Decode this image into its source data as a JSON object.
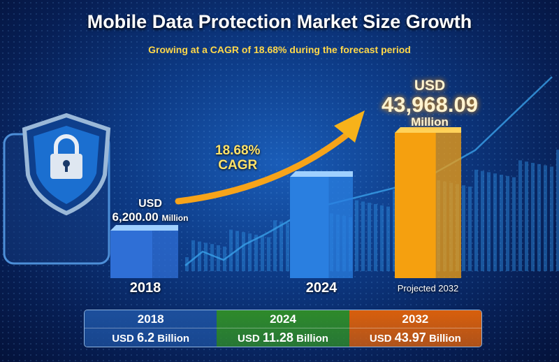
{
  "title": "Mobile Data Protection Market Size Growth",
  "subtitle": "Growing at a CAGR of 18.68% during the forecast period",
  "cagr": {
    "value": "18.68%",
    "label": "CAGR"
  },
  "labels": {
    "y2018": {
      "currency": "USD",
      "value": "6,200.00",
      "unit": "Million"
    },
    "y2032": {
      "currency": "USD",
      "value": "43,968.09",
      "unit": "Million"
    }
  },
  "chart_data": {
    "type": "bar",
    "title": "Mobile Data Protection Market Size Growth",
    "categories": [
      "2018",
      "2024",
      "Projected 2032"
    ],
    "values": [
      6200.0,
      11280,
      43968.09
    ],
    "unit": "USD Million",
    "colors": [
      "#2f6fd6",
      "#2a7fe0",
      "#f5a00f"
    ]
  },
  "table": [
    {
      "year": "2018",
      "prefix": "USD",
      "amount": "6.2",
      "suffix": "Billion",
      "color": "#1c4f9c"
    },
    {
      "year": "2024",
      "prefix": "USD",
      "amount": "11.28",
      "suffix": "Billion",
      "color": "#2e8a2a"
    },
    {
      "year": "2032",
      "prefix": "USD",
      "amount": "43.97",
      "suffix": "Billion",
      "color": "#d85f0c"
    }
  ]
}
